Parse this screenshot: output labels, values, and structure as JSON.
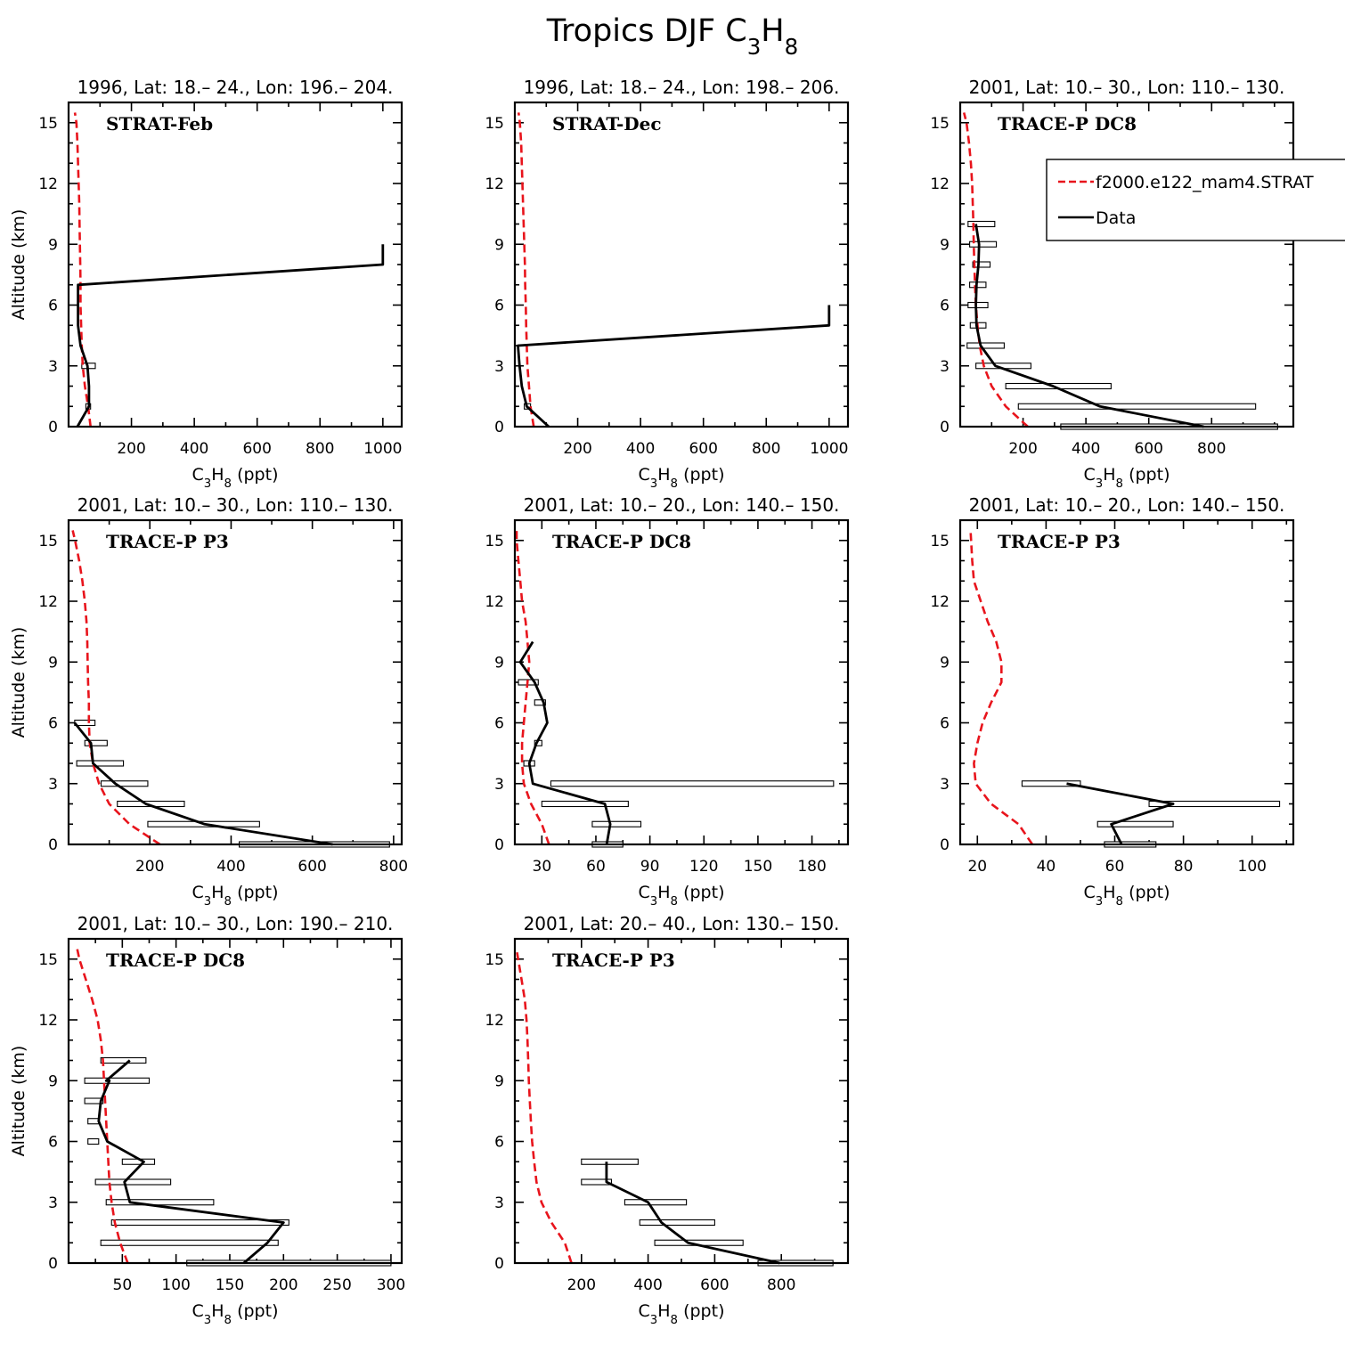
{
  "figure": {
    "title": "Tropics DJF C3H8",
    "legend": {
      "model": "f2000.e122_mam4.STRAT",
      "data": "Data"
    },
    "colors": {
      "model": "#e8141c",
      "data": "#000000"
    },
    "xlabel": "C3H8 (ppt)",
    "ylabel": "Altitude (km)"
  },
  "chart_data": [
    {
      "type": "line",
      "subtitle": "1996, Lat: 18.– 24., Lon: 196.– 204.",
      "campaign": "STRAT-Feb",
      "xlim": [
        0,
        1060
      ],
      "xticks": [
        200,
        400,
        600,
        800,
        1000
      ],
      "ylim": [
        0,
        16
      ],
      "model": {
        "x": [
          70,
          62,
          52,
          45,
          42,
          40,
          38,
          38,
          37,
          36,
          35,
          34,
          32,
          30,
          28,
          25,
          20
        ],
        "y": [
          0,
          1,
          2,
          3,
          4,
          5,
          6,
          7,
          8,
          9,
          10,
          11,
          12,
          13,
          14,
          15,
          15.5
        ]
      },
      "data": {
        "x": [
          28,
          65,
          65,
          60,
          38,
          30,
          30,
          1000,
          1000
        ],
        "y": [
          0,
          1,
          2,
          3,
          4,
          5,
          7,
          8,
          9
        ]
      },
      "bars": [
        {
          "y": 3,
          "lo": 42,
          "hi": 85
        },
        {
          "y": 1,
          "lo": 55,
          "hi": 70
        }
      ]
    },
    {
      "type": "line",
      "subtitle": "1996, Lat: 18.– 24., Lon: 198.– 206.",
      "campaign": "STRAT-Dec",
      "xlim": [
        0,
        1060
      ],
      "xticks": [
        200,
        400,
        600,
        800,
        1000
      ],
      "ylim": [
        0,
        16
      ],
      "model": {
        "x": [
          60,
          50,
          45,
          40,
          38,
          36,
          35,
          33,
          32,
          30,
          28,
          26,
          24,
          22,
          20,
          16,
          12
        ],
        "y": [
          0,
          1,
          2,
          3,
          4,
          5,
          6,
          7,
          8,
          9,
          10,
          11,
          12,
          13,
          14,
          15,
          15.5
        ]
      },
      "data": {
        "x": [
          108,
          38,
          22,
          15,
          10,
          1000,
          1000
        ],
        "y": [
          0,
          1,
          2,
          3,
          4,
          5,
          6
        ]
      },
      "bars": [
        {
          "y": 1,
          "lo": 30,
          "hi": 50
        }
      ]
    },
    {
      "type": "line",
      "subtitle": "2001, Lat: 10.– 30., Lon: 110.– 130.",
      "campaign": "TRACE-P DC8",
      "xlim": [
        0,
        1060
      ],
      "xticks": [
        200,
        400,
        600,
        800
      ],
      "ylim": [
        0,
        16
      ],
      "model": {
        "x": [
          215,
          145,
          100,
          75,
          62,
          55,
          50,
          47,
          45,
          43,
          42,
          40,
          38,
          34,
          28,
          20,
          12
        ],
        "y": [
          0,
          1,
          2,
          3,
          4,
          5,
          6,
          7,
          8,
          9,
          10,
          11,
          12,
          13,
          14,
          15,
          15.5
        ]
      },
      "data": {
        "x": [
          775,
          445,
          295,
          112,
          65,
          52,
          50,
          52,
          58,
          60,
          50
        ],
        "y": [
          0,
          1,
          2,
          3,
          4,
          5,
          6,
          7,
          8,
          9,
          10
        ]
      },
      "bars": [
        {
          "y": 0,
          "lo": 320,
          "hi": 1010
        },
        {
          "y": 1,
          "lo": 185,
          "hi": 940
        },
        {
          "y": 2,
          "lo": 145,
          "hi": 480
        },
        {
          "y": 3,
          "lo": 50,
          "hi": 225
        },
        {
          "y": 4,
          "lo": 22,
          "hi": 140
        },
        {
          "y": 5,
          "lo": 32,
          "hi": 82
        },
        {
          "y": 6,
          "lo": 25,
          "hi": 88
        },
        {
          "y": 7,
          "lo": 30,
          "hi": 82
        },
        {
          "y": 8,
          "lo": 40,
          "hi": 95
        },
        {
          "y": 9,
          "lo": 30,
          "hi": 115
        },
        {
          "y": 10,
          "lo": 25,
          "hi": 110
        }
      ],
      "legend": true
    },
    {
      "type": "line",
      "subtitle": "2001, Lat: 10.– 30., Lon: 110.– 130.",
      "campaign": "TRACE-P P3",
      "xlim": [
        0,
        820
      ],
      "xticks": [
        200,
        400,
        600,
        800
      ],
      "ylim": [
        0,
        16
      ],
      "model": {
        "x": [
          225,
          150,
          100,
          75,
          60,
          52,
          50,
          50,
          48,
          47,
          46,
          44,
          40,
          34,
          26,
          16,
          10
        ],
        "y": [
          0,
          1,
          2,
          3,
          4,
          5,
          6,
          7,
          8,
          9,
          10,
          11,
          12,
          13,
          14,
          15,
          15.5
        ]
      },
      "data": {
        "x": [
          650,
          335,
          190,
          115,
          60,
          55,
          15
        ],
        "y": [
          0,
          1,
          2,
          3,
          4,
          5,
          6
        ]
      },
      "bars": [
        {
          "y": 0,
          "lo": 420,
          "hi": 790
        },
        {
          "y": 1,
          "lo": 195,
          "hi": 470
        },
        {
          "y": 2,
          "lo": 120,
          "hi": 285
        },
        {
          "y": 3,
          "lo": 80,
          "hi": 195
        },
        {
          "y": 4,
          "lo": 20,
          "hi": 135
        },
        {
          "y": 5,
          "lo": 40,
          "hi": 95
        },
        {
          "y": 6,
          "lo": 15,
          "hi": 65
        }
      ]
    },
    {
      "type": "line",
      "subtitle": "2001, Lat: 10.– 20., Lon: 140.– 150.",
      "campaign": "TRACE-P DC8",
      "xlim": [
        15,
        200
      ],
      "xticks": [
        30,
        60,
        90,
        120,
        150,
        180
      ],
      "ylim": [
        0,
        16
      ],
      "model": {
        "x": [
          34,
          30,
          24,
          20,
          19,
          19,
          20,
          21,
          22,
          23,
          22,
          21,
          19,
          18,
          17,
          16,
          16
        ],
        "y": [
          0,
          1,
          2,
          3,
          4,
          5,
          6,
          7,
          8,
          9,
          10,
          11,
          12,
          13,
          14,
          15,
          15.5
        ]
      },
      "data": {
        "x": [
          66,
          68,
          65,
          25,
          23,
          27,
          33,
          31,
          26,
          18,
          25
        ],
        "y": [
          0,
          1,
          2,
          3,
          4,
          5,
          6,
          7,
          8,
          9,
          10
        ]
      },
      "bars": [
        {
          "y": 0,
          "lo": 58,
          "hi": 75
        },
        {
          "y": 1,
          "lo": 58,
          "hi": 85
        },
        {
          "y": 2,
          "lo": 30,
          "hi": 78
        },
        {
          "y": 3,
          "lo": 35,
          "hi": 192
        },
        {
          "y": 4,
          "lo": 20,
          "hi": 26
        },
        {
          "y": 5,
          "lo": 26,
          "hi": 30
        },
        {
          "y": 7,
          "lo": 26,
          "hi": 32
        },
        {
          "y": 8,
          "lo": 17,
          "hi": 28
        }
      ]
    },
    {
      "type": "line",
      "subtitle": "2001, Lat: 10.– 20., Lon: 140.– 150.",
      "campaign": "TRACE-P P3",
      "xlim": [
        15,
        112
      ],
      "xticks": [
        20,
        40,
        60,
        80,
        100
      ],
      "ylim": [
        0,
        16
      ],
      "model": {
        "x": [
          36,
          32,
          24,
          19.5,
          19,
          20,
          21.5,
          24,
          27,
          27,
          25.5,
          23,
          21,
          19,
          18.5,
          18
        ],
        "y": [
          0,
          1,
          2,
          3,
          4,
          5,
          6,
          7,
          8,
          9,
          10,
          11,
          12,
          13,
          14,
          15.5
        ]
      },
      "data": {
        "x": [
          62,
          59,
          77,
          46
        ],
        "y": [
          0,
          1,
          2,
          3
        ]
      },
      "bars": [
        {
          "y": 0,
          "lo": 57,
          "hi": 72
        },
        {
          "y": 1,
          "lo": 55,
          "hi": 77
        },
        {
          "y": 2,
          "lo": 70,
          "hi": 108
        },
        {
          "y": 3,
          "lo": 33,
          "hi": 50
        }
      ]
    },
    {
      "type": "line",
      "subtitle": "2001, Lat: 10.– 30., Lon: 190.– 210.",
      "campaign": "TRACE-P DC8",
      "xlim": [
        0,
        310
      ],
      "xticks": [
        50,
        100,
        150,
        200,
        250,
        300
      ],
      "ylim": [
        0,
        16
      ],
      "model": {
        "x": [
          55,
          48,
          43,
          40,
          38,
          37,
          36,
          35,
          34,
          33,
          32,
          30,
          27,
          22,
          16,
          10,
          8
        ],
        "y": [
          0,
          1,
          2,
          3,
          4,
          5,
          6,
          7,
          8,
          9,
          10,
          11,
          12,
          13,
          14,
          15,
          15.5
        ]
      },
      "data": {
        "x": [
          163,
          185,
          200,
          57,
          52,
          70,
          36,
          28,
          30,
          38,
          35,
          57
        ],
        "y": [
          0,
          1,
          2,
          3,
          4,
          5,
          6,
          7,
          8,
          9,
          9,
          10
        ]
      },
      "bars": [
        {
          "y": 0,
          "lo": 110,
          "hi": 300
        },
        {
          "y": 1,
          "lo": 30,
          "hi": 195
        },
        {
          "y": 2,
          "lo": 40,
          "hi": 205
        },
        {
          "y": 3,
          "lo": 35,
          "hi": 135
        },
        {
          "y": 4,
          "lo": 25,
          "hi": 95
        },
        {
          "y": 5,
          "lo": 50,
          "hi": 80
        },
        {
          "y": 6,
          "lo": 18,
          "hi": 28
        },
        {
          "y": 7,
          "lo": 18,
          "hi": 28
        },
        {
          "y": 8,
          "lo": 15,
          "hi": 32
        },
        {
          "y": 9,
          "lo": 15,
          "hi": 75
        },
        {
          "y": 10,
          "lo": 30,
          "hi": 72
        }
      ]
    },
    {
      "type": "line",
      "subtitle": "2001, Lat: 20.– 40., Lon: 130.– 150.",
      "campaign": "TRACE-P P3",
      "xlim": [
        0,
        1000
      ],
      "xticks": [
        200,
        400,
        600,
        800
      ],
      "ylim": [
        0,
        16
      ],
      "model": {
        "x": [
          170,
          150,
          110,
          80,
          65,
          58,
          52,
          48,
          45,
          42,
          40,
          38,
          35,
          30,
          20,
          10,
          5
        ],
        "y": [
          0,
          1,
          2,
          3,
          4,
          5,
          6,
          7,
          8,
          9,
          10,
          11,
          12,
          13,
          14,
          15,
          15.5
        ]
      },
      "data": {
        "x": [
          795,
          520,
          440,
          400,
          275,
          275
        ],
        "y": [
          0,
          1,
          2,
          3,
          4,
          5
        ]
      },
      "bars": [
        {
          "y": 0,
          "lo": 730,
          "hi": 955
        },
        {
          "y": 1,
          "lo": 420,
          "hi": 685
        },
        {
          "y": 2,
          "lo": 375,
          "hi": 600
        },
        {
          "y": 3,
          "lo": 330,
          "hi": 515
        },
        {
          "y": 4,
          "lo": 200,
          "hi": 290
        },
        {
          "y": 5,
          "lo": 200,
          "hi": 370
        }
      ]
    }
  ]
}
